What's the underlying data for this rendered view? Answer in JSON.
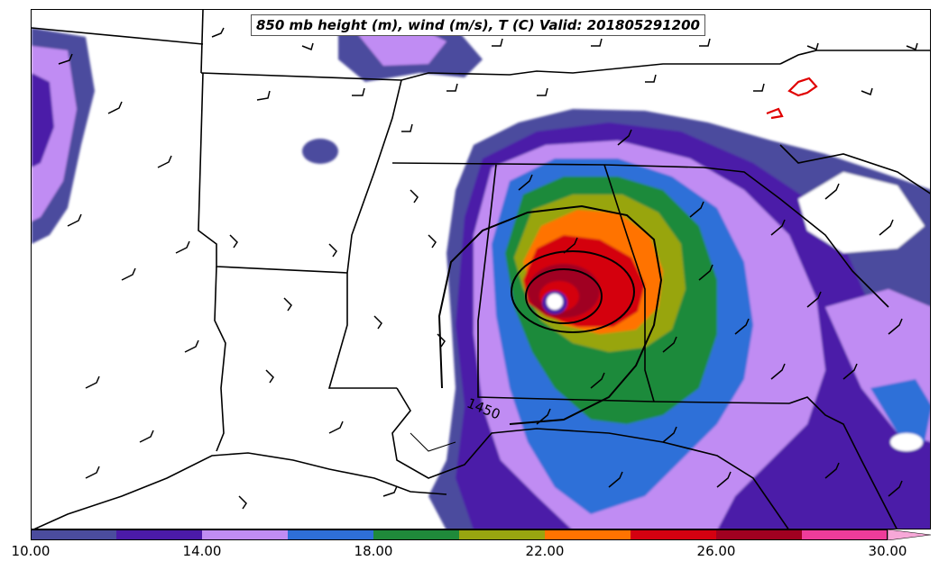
{
  "title": "850 mb height (m), wind (m/s), T (C) Valid: 201805291200",
  "contour_label": "1450",
  "colorbar": {
    "min": 10.0,
    "max": 30.0,
    "step": 2.0,
    "tick_labels": [
      "10.00",
      "14.00",
      "18.00",
      "22.00",
      "26.00",
      "30.00"
    ],
    "colors": [
      "#4b4c9e",
      "#4b1aa8",
      "#c08cf3",
      "#2e6fd8",
      "#1f8a3a",
      "#98a510",
      "#ff7300",
      "#d40010",
      "#a00020",
      "#ee3c9a"
    ],
    "extend": "max",
    "extend_color": "#f7a8d8"
  },
  "legend": {
    "height_contour_color": "#000000",
    "temperature_contour_color": "#e00000",
    "state_border_color": "#000000"
  },
  "chart_data": {
    "type": "map",
    "fields": [
      "850 mb height (m)",
      "wind (m/s)",
      "T (C)"
    ],
    "valid_time": "201805291200",
    "height_contours_m": [
      1450
    ],
    "color_scale_range": [
      10,
      30
    ]
  }
}
